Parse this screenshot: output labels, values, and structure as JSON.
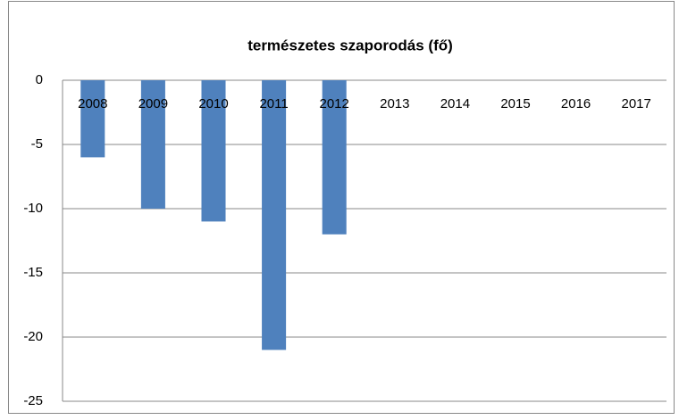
{
  "chart_data": {
    "type": "bar",
    "title": "természetes szaporodás (fő)",
    "categories": [
      "2008",
      "2009",
      "2010",
      "2011",
      "2012",
      "2013",
      "2014",
      "2015",
      "2016",
      "2017"
    ],
    "values": [
      -6,
      -10,
      -11,
      -21,
      -12,
      null,
      null,
      null,
      null,
      null
    ],
    "color": "#4f81bd",
    "ylim": [
      -25,
      0
    ],
    "yticks": [
      0,
      -5,
      -10,
      -15,
      -20,
      -25
    ],
    "grid": true
  }
}
